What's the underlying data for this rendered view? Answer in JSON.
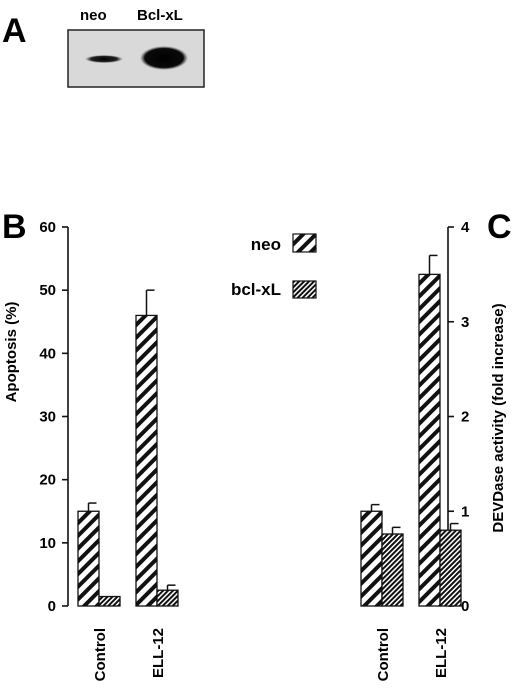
{
  "panels": {
    "a": {
      "letter": "A",
      "lanes": [
        "neo",
        "Bcl-xL"
      ]
    },
    "b": {
      "letter": "B"
    },
    "c": {
      "letter": "C"
    }
  },
  "legend": [
    {
      "label": "neo",
      "pattern": "sparse-hatch"
    },
    {
      "label": "bcl-xL",
      "pattern": "dense-hatch"
    }
  ],
  "chart_data": [
    {
      "type": "bar",
      "panel": "B",
      "categories": [
        "Control",
        "ELL-12"
      ],
      "series": [
        {
          "name": "neo",
          "values": [
            15,
            46
          ],
          "errors": [
            1.3,
            4
          ]
        },
        {
          "name": "bcl-xL",
          "values": [
            1.5,
            2.5
          ],
          "errors": [
            0,
            0.8
          ]
        }
      ],
      "ylabel": "Apoptosis (%)",
      "ylim": [
        0,
        60
      ],
      "yticks": [
        "0",
        "10",
        "20",
        "30",
        "40",
        "50",
        "60"
      ],
      "yaxis_side": "left"
    },
    {
      "type": "bar",
      "panel": "C",
      "categories": [
        "Control",
        "ELL-12"
      ],
      "series": [
        {
          "name": "neo",
          "values": [
            1.0,
            3.5
          ],
          "errors": [
            0.07,
            0.2
          ]
        },
        {
          "name": "bcl-xL",
          "values": [
            0.76,
            0.8
          ],
          "errors": [
            0.07,
            0.07
          ]
        }
      ],
      "ylabel": "DEVDase activity (fold increase)",
      "ylim": [
        0,
        4
      ],
      "yticks": [
        "0",
        "1",
        "2",
        "3",
        "4"
      ],
      "yaxis_side": "right"
    }
  ]
}
